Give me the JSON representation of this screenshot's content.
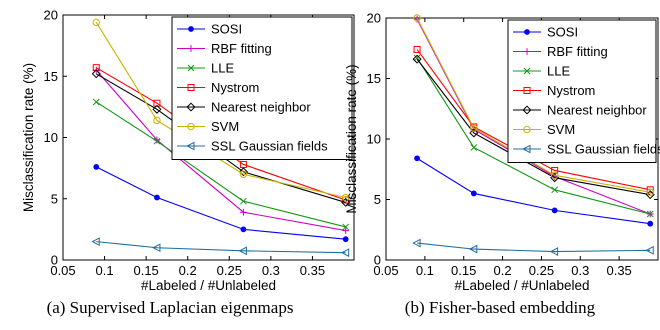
{
  "chart_data": [
    {
      "type": "line",
      "caption": "(a) Supervised Laplacian eigenmaps",
      "xlabel": "#Labeled / #Unlabeled",
      "ylabel": "Misclassification rate (%)",
      "xlim": [
        0.05,
        0.4
      ],
      "ylim": [
        0,
        20
      ],
      "xticks": [
        "0.05",
        "0.1",
        "0.15",
        "0.2",
        "0.25",
        "0.3",
        "0.35"
      ],
      "yticks": [
        "0",
        "5",
        "10",
        "15",
        "20"
      ],
      "grid": false,
      "legend_position": "top-right",
      "x": [
        0.09,
        0.163,
        0.267,
        0.39
      ],
      "series": [
        {
          "name": "SOSI",
          "color": "#0000ff",
          "marker": "dot",
          "values": [
            7.6,
            5.1,
            2.5,
            1.7
          ]
        },
        {
          "name": "RBF fitting",
          "color": "#cc00cc",
          "marker": "plus",
          "values": [
            15.5,
            9.8,
            3.9,
            2.4
          ]
        },
        {
          "name": "LLE",
          "color": "#119911",
          "marker": "x",
          "values": [
            12.9,
            9.7,
            4.8,
            2.7
          ]
        },
        {
          "name": "Nystrom",
          "color": "#ff0000",
          "marker": "square",
          "values": [
            15.7,
            12.8,
            7.8,
            4.9
          ]
        },
        {
          "name": "Nearest neighbor",
          "color": "#000000",
          "marker": "diamond",
          "values": [
            15.2,
            12.3,
            7.2,
            4.7
          ]
        },
        {
          "name": "SVM",
          "color": "#c8b400",
          "marker": "circle",
          "values": [
            19.4,
            11.4,
            7.0,
            5.1
          ]
        },
        {
          "name": "SSL Gaussian fields",
          "color": "#1f6fa0",
          "marker": "triangle-left",
          "values": [
            1.5,
            1.0,
            0.75,
            0.6
          ]
        }
      ]
    },
    {
      "type": "line",
      "caption": "(b) Fisher-based embedding",
      "xlabel": "#Labeled / #Unlabeled",
      "ylabel": "Misclassification rate (%)",
      "xlim": [
        0.05,
        0.4
      ],
      "ylim": [
        0,
        20
      ],
      "xticks": [
        "0.05",
        "0.1",
        "0.15",
        "0.2",
        "0.25",
        "0.3",
        "0.35"
      ],
      "yticks": [
        "0",
        "5",
        "10",
        "15",
        "20"
      ],
      "grid": false,
      "legend_position": "top-right",
      "x": [
        0.09,
        0.163,
        0.267,
        0.39
      ],
      "series": [
        {
          "name": "SOSI",
          "color": "#0000ff",
          "marker": "dot",
          "values": [
            8.4,
            5.5,
            4.1,
            3.0
          ]
        },
        {
          "name": "RBF fitting",
          "color": "#cc00cc",
          "marker": "plus",
          "values": [
            19.9,
            10.8,
            6.9,
            3.8
          ]
        },
        {
          "name": "LLE",
          "color": "#119911",
          "marker": "x",
          "values": [
            16.7,
            9.3,
            5.8,
            3.8
          ]
        },
        {
          "name": "Nystrom",
          "color": "#ff0000",
          "marker": "square",
          "values": [
            17.4,
            11.0,
            7.4,
            5.8
          ]
        },
        {
          "name": "Nearest neighbor",
          "color": "#000000",
          "marker": "diamond",
          "values": [
            16.6,
            10.5,
            6.8,
            5.4
          ]
        },
        {
          "name": "SVM",
          "color": "#c8b400",
          "marker": "circle",
          "values": [
            20.0,
            10.9,
            7.0,
            5.6
          ]
        },
        {
          "name": "SSL Gaussian fields",
          "color": "#1f6fa0",
          "marker": "triangle-left",
          "values": [
            1.4,
            0.9,
            0.7,
            0.8
          ]
        }
      ]
    }
  ]
}
